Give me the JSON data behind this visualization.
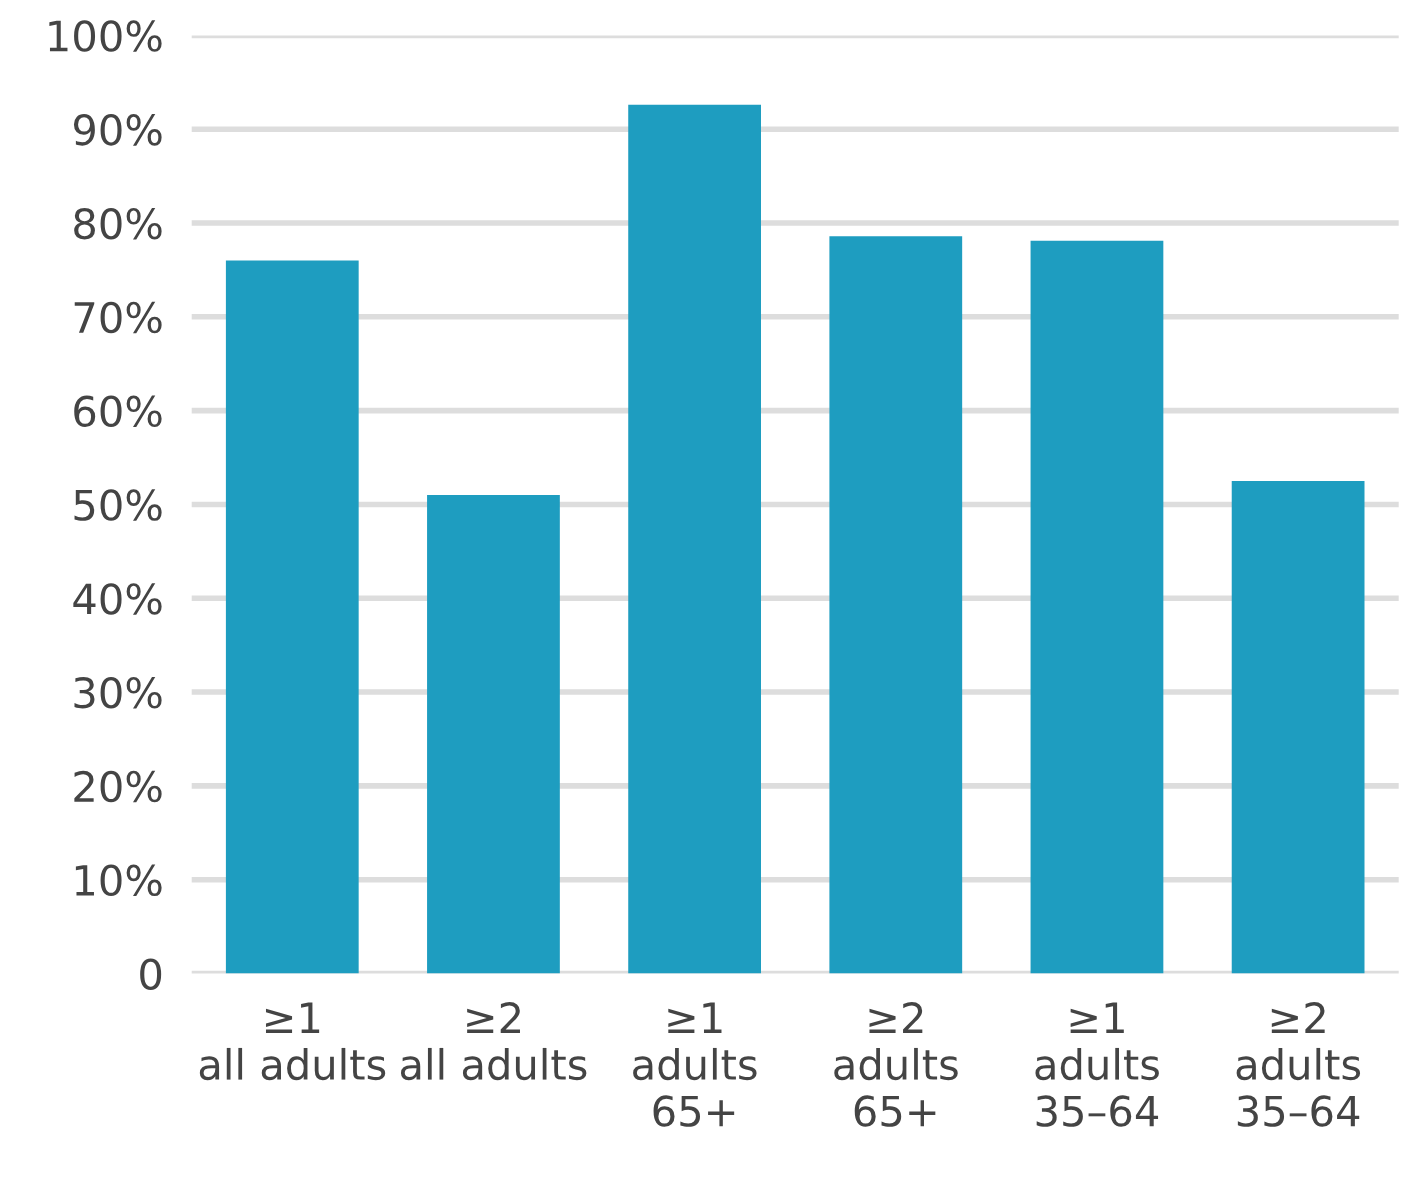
{
  "chart_data": {
    "type": "bar",
    "categories": [
      "≥1\nall adults",
      "≥2\nall adults",
      "≥1\nadults\n65+",
      "≥2\nadults\n65+",
      "≥1\nadults\n35–64",
      "≥2\nadults\n35–64"
    ],
    "values": [
      76,
      51,
      92.6,
      78.6,
      78.1,
      52.5
    ],
    "color": "#1e9dc0",
    "ylim": [
      0,
      100
    ],
    "yticks": [
      0,
      {
        "value": 10,
        "label": "10%"
      },
      {
        "value": 20,
        "label": "20%"
      },
      {
        "value": 30,
        "label": "30%"
      },
      {
        "value": 40,
        "label": "40%"
      },
      {
        "value": 50,
        "label": "50%"
      },
      {
        "value": 60,
        "label": "60%"
      },
      {
        "value": 70,
        "label": "70%"
      },
      {
        "value": 80,
        "label": "80%"
      },
      {
        "value": 90,
        "label": "90%"
      },
      {
        "value": 100,
        "label": "100%"
      }
    ],
    "grid": "y"
  }
}
